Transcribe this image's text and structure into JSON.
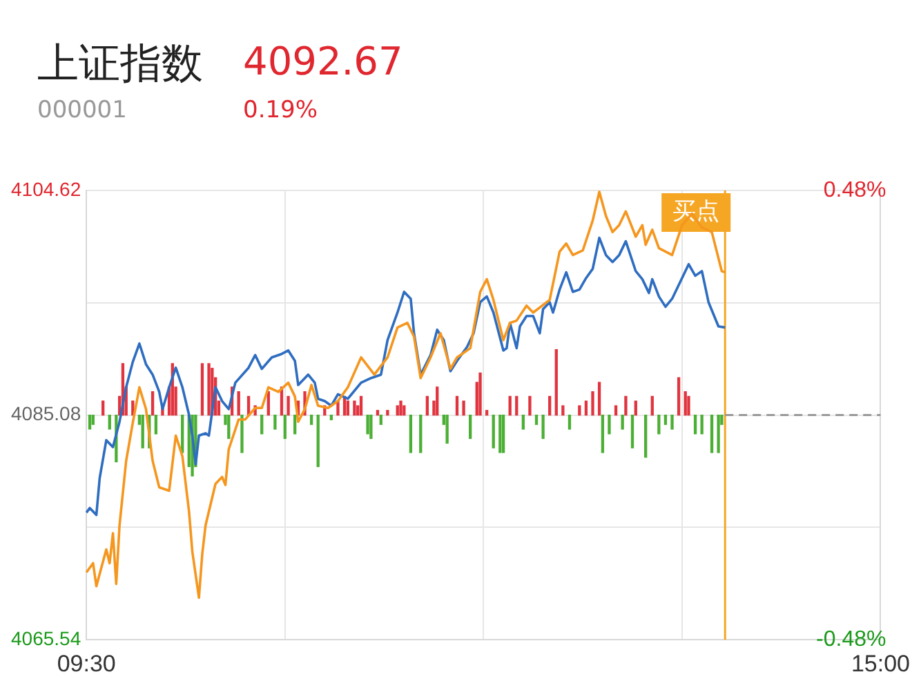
{
  "chart_data": {
    "type": "line",
    "title": "上证指数",
    "subtitle": "000001",
    "annotations": [
      "4092.67",
      "0.19%",
      {
        "text": "买点"
      }
    ],
    "categories": [
      "09:30",
      null,
      null,
      null,
      null,
      null,
      null,
      null,
      null,
      null,
      null,
      null,
      null,
      null,
      null,
      null,
      null,
      null,
      null,
      null,
      null,
      null,
      null,
      null,
      null,
      null,
      null,
      null,
      null,
      null,
      null,
      null,
      null,
      null,
      null,
      null,
      null,
      null,
      null,
      null,
      null,
      null,
      null,
      null,
      null,
      null,
      null,
      null,
      null,
      null,
      null,
      null,
      null,
      null,
      null,
      null,
      null,
      null,
      null,
      null,
      null,
      null,
      null,
      null,
      null,
      null,
      null,
      null,
      null,
      null,
      null,
      null,
      null,
      null,
      null,
      null,
      null,
      null,
      null,
      null,
      null,
      null,
      null,
      null,
      null,
      null,
      null,
      null,
      null,
      null,
      null,
      null,
      null,
      null,
      null,
      null,
      null,
      null,
      null,
      null,
      null,
      null,
      null,
      null,
      null,
      null,
      null,
      null,
      null,
      null,
      null,
      null,
      null,
      null,
      null,
      null,
      null,
      null,
      null,
      null,
      null,
      null,
      null,
      null,
      null,
      null,
      null,
      null,
      null,
      null,
      null,
      null,
      null,
      null,
      null,
      null,
      null,
      null,
      null,
      null,
      null,
      null,
      null,
      null,
      null,
      null,
      null,
      null,
      null,
      null,
      null,
      null,
      null,
      null,
      null,
      null,
      null,
      null,
      null,
      null,
      null,
      null,
      null,
      null,
      null,
      null,
      null,
      null,
      null,
      null,
      null,
      null,
      null,
      null,
      null,
      null,
      null,
      null,
      null,
      null,
      null,
      null,
      null,
      null,
      null,
      null,
      null,
      null,
      null,
      null,
      null,
      null,
      null,
      null,
      null,
      null,
      null,
      null,
      null,
      null,
      null,
      null,
      null,
      null,
      null,
      null,
      null,
      null,
      null,
      null,
      null,
      null,
      null,
      null,
      null,
      null,
      null,
      null,
      null,
      null,
      null,
      null,
      null,
      null,
      null,
      null,
      null,
      null,
      null,
      null,
      null,
      null,
      null,
      null,
      null,
      null,
      null,
      null,
      null,
      null,
      "15:00"
    ],
    "ylim": [
      4065.54,
      4104.62
    ],
    "yticks": [
      4065.54,
      {
        "value": 4075.31,
        "label": null
      },
      4085.08,
      {
        "value": 4094.85,
        "label": null
      },
      4104.62
    ],
    "y2lim": [
      -0.48,
      0.48
    ],
    "y2ticks": [
      {
        "value": -0.48,
        "label": "-0.48%"
      },
      {
        "value": 0.48,
        "label": "0.48%"
      }
    ],
    "grid": true,
    "legend": false,
    "marker": "none",
    "line_style": "solid",
    "ref_lines": [
      {
        "axis": "y",
        "value": 4085.08,
        "label": null,
        "color": "#999999",
        "line_style": "dashed"
      }
    ],
    "series": [
      {
        "type": "bar",
        "axis": "y2",
        "color": "#e0343f",
        "values": [
          null,
          null,
          null,
          null,
          null,
          0.03,
          null,
          null,
          null,
          null,
          0.04,
          0.11,
          0.06,
          null,
          0.03,
          null,
          null,
          null,
          null,
          null,
          0.05,
          null,
          null,
          0.02,
          null,
          0.06,
          0.11,
          0.06,
          null,
          null,
          null,
          null,
          null,
          null,
          null,
          0.11,
          null,
          0.11,
          0.1,
          0.08,
          0.03,
          null,
          null,
          null,
          0.06,
          null,
          0.05,
          null,
          null,
          0.04,
          null,
          0.02,
          null,
          null,
          null,
          0.05,
          null,
          null,
          null,
          0.06,
          null,
          0.04,
          null,
          null,
          0.03,
          null,
          0.05,
          null,
          null,
          null,
          null,
          null,
          0.02,
          null,
          null,
          null,
          0.03,
          null,
          0.04,
          0.03,
          null,
          0.03,
          0.02,
          0.04,
          null,
          null,
          null,
          null,
          0.01,
          null,
          null,
          0.01,
          null,
          null,
          0.02,
          0.03,
          0.02,
          null,
          null,
          null,
          null,
          null,
          null,
          0.04,
          null,
          0.03,
          0.06,
          null,
          null,
          null,
          null,
          null,
          0.04,
          null,
          0.03,
          null,
          null,
          null,
          0.07,
          0.09,
          null,
          0.01,
          null,
          null,
          null,
          null,
          null,
          null,
          0.04,
          null,
          0.04,
          null,
          null,
          null,
          0.04,
          null,
          null,
          null,
          null,
          null,
          0.04,
          null,
          0.14,
          null,
          0.02,
          null,
          null,
          null,
          null,
          0.02,
          null,
          0.03,
          null,
          0.05,
          null,
          0.07,
          null,
          null,
          null,
          null,
          0.02,
          null,
          null,
          0.04,
          null,
          null,
          0.03,
          null,
          null,
          null,
          null,
          0.04,
          null,
          null,
          null,
          null,
          null,
          null,
          null,
          0.08,
          null,
          0.05,
          0.04,
          null,
          null,
          null,
          null,
          null,
          null,
          null,
          null,
          null,
          null,
          null,
          null,
          null,
          null,
          null,
          null,
          null,
          null,
          null,
          null,
          null,
          null,
          null,
          null,
          null,
          null,
          null,
          null,
          null,
          null,
          null,
          null,
          null,
          null,
          null,
          null,
          null,
          null,
          null,
          null,
          null,
          null,
          null,
          null,
          null,
          null,
          null,
          null,
          null,
          null,
          null,
          null,
          null,
          null,
          null,
          null,
          null,
          null
        ]
      },
      {
        "type": "bar",
        "axis": "y2",
        "color": "#4caf35",
        "values": [
          null,
          -0.03,
          -0.02,
          null,
          null,
          null,
          null,
          -0.03,
          null,
          -0.1,
          null,
          null,
          null,
          null,
          null,
          null,
          -0.02,
          -0.07,
          null,
          -0.07,
          null,
          -0.04,
          null,
          null,
          null,
          null,
          null,
          null,
          null,
          -0.08,
          null,
          -0.11,
          -0.13,
          -0.11,
          null,
          null,
          null,
          null,
          null,
          null,
          null,
          null,
          -0.02,
          -0.05,
          null,
          null,
          null,
          -0.08,
          null,
          null,
          null,
          null,
          null,
          -0.04,
          null,
          null,
          null,
          -0.03,
          null,
          null,
          -0.05,
          null,
          null,
          -0.04,
          null,
          null,
          null,
          null,
          -0.02,
          null,
          -0.11,
          null,
          null,
          null,
          -0.01,
          null,
          null,
          null,
          null,
          null,
          null,
          null,
          null,
          null,
          null,
          -0.04,
          -0.05,
          null,
          null,
          -0.02,
          null,
          null,
          null,
          null,
          null,
          null,
          null,
          null,
          -0.08,
          null,
          null,
          -0.08,
          null,
          null,
          null,
          null,
          null,
          null,
          -0.02,
          -0.06,
          null,
          null,
          null,
          null,
          null,
          null,
          -0.05,
          null,
          null,
          null,
          null,
          null,
          null,
          -0.07,
          null,
          -0.08,
          -0.08,
          null,
          null,
          null,
          null,
          null,
          -0.03,
          null,
          null,
          null,
          -0.02,
          null,
          -0.05,
          null,
          null,
          null,
          null,
          null,
          null,
          null,
          -0.03,
          null,
          null,
          null,
          null,
          null,
          null,
          null,
          null,
          null,
          -0.08,
          null,
          -0.04,
          null,
          null,
          null,
          -0.03,
          null,
          null,
          -0.07,
          null,
          null,
          null,
          -0.09,
          null,
          null,
          null,
          -0.04,
          null,
          -0.02,
          null,
          -0.03,
          null,
          null,
          null,
          null,
          null,
          null,
          -0.04,
          null,
          -0.04,
          null,
          null,
          -0.08,
          null,
          -0.08,
          -0.02,
          null,
          null,
          null,
          null,
          null,
          null,
          null,
          null,
          null,
          null,
          null,
          null,
          null,
          null,
          null,
          null,
          null,
          null,
          null,
          null,
          null,
          null,
          null,
          null,
          null,
          null,
          null,
          null,
          null,
          null,
          null,
          null,
          null,
          null,
          null,
          null,
          null,
          null,
          null,
          null,
          null,
          null,
          null,
          null,
          null,
          null,
          null,
          null
        ]
      },
      {
        "color": "#f5961e",
        "values": [
          4071.4,
          null,
          4072.2,
          4070.2,
          null,
          null,
          4073.4,
          4072.2,
          4074.8,
          4070.4,
          4075.5,
          null,
          4081.1,
          null,
          4084.4,
          null,
          4087.5,
          null,
          4085.6,
          null,
          4081.1,
          null,
          4078.8,
          null,
          null,
          4078.5,
          null,
          4083.3,
          null,
          4081.5,
          null,
          4076.7,
          4073.2,
          null,
          4069.2,
          4073.0,
          4075.5,
          null,
          null,
          4079.1,
          null,
          4079.7,
          4079.0,
          4082.1,
          null,
          null,
          4084.7,
          null,
          4084.7,
          null,
          null,
          4085.7,
          null,
          4085.7,
          null,
          4087.5,
          null,
          null,
          4087.1,
          null,
          null,
          4087.9,
          null,
          4086.7,
          4084.5,
          null,
          4085.6,
          null,
          4087.7,
          null,
          4085.9,
          null,
          null,
          4085.7,
          null,
          null,
          4086.3,
          null,
          null,
          4087.5,
          null,
          null,
          null,
          4090.1,
          null,
          null,
          null,
          4088.6,
          null,
          null,
          null,
          4090.1,
          null,
          null,
          4092.7,
          null,
          null,
          4093.1,
          null,
          4091.9,
          null,
          4088.3,
          null,
          null,
          4090.1,
          null,
          null,
          4092.2,
          null,
          null,
          4089.1,
          null,
          4090.1,
          null,
          null,
          null,
          4090.9,
          null,
          null,
          4095.8,
          null,
          4096.9,
          null,
          4095.1,
          null,
          null,
          4091.6,
          null,
          4093.1,
          null,
          4093.3,
          null,
          null,
          4094.6,
          null,
          4094.0,
          null,
          null,
          null,
          null,
          4095.1,
          null,
          null,
          4099.3,
          null,
          4100.0,
          null,
          4099.0,
          null,
          null,
          4099.4,
          null,
          null,
          4102.0,
          null,
          4104.5,
          null,
          4102.4,
          null,
          4101.0,
          null,
          4101.6,
          null,
          4102.8,
          null,
          null,
          4100.6,
          null,
          4101.6,
          4099.9,
          null,
          4101.2,
          null,
          4099.6,
          null,
          null,
          null,
          4099.0,
          null,
          null,
          4101.6,
          null,
          null,
          4102.6,
          null,
          null,
          4101.4,
          null,
          null,
          4101.0,
          null,
          null,
          4097.6,
          4097.5,
          null,
          null,
          null,
          null,
          null,
          null,
          null,
          null,
          null,
          null,
          null,
          null,
          null,
          null,
          null,
          null,
          null,
          null,
          null,
          null,
          null,
          null,
          null,
          null,
          null,
          null,
          null,
          null,
          null,
          null,
          null,
          null,
          null,
          null,
          null,
          null,
          null,
          null,
          null,
          null,
          null,
          null,
          null,
          null,
          null,
          null,
          null
        ]
      },
      {
        "color": "#2e6dc0",
        "values": [
          4076.6,
          4077.0,
          null,
          4076.4,
          4079.6,
          null,
          4082.9,
          null,
          4082.3,
          null,
          4084.5,
          null,
          4087.5,
          null,
          4089.7,
          null,
          4091.3,
          null,
          4089.5,
          null,
          4088.6,
          null,
          4087.1,
          4085.6,
          null,
          4087.5,
          null,
          4089.2,
          null,
          4087.5,
          null,
          4085.1,
          4083.3,
          4080.8,
          4083.3,
          null,
          4083.5,
          4083.3,
          null,
          4087.5,
          null,
          4086.3,
          null,
          4085.6,
          null,
          4087.9,
          null,
          null,
          null,
          4089.2,
          null,
          4090.3,
          null,
          4089.1,
          null,
          null,
          4090.1,
          null,
          null,
          4090.4,
          null,
          4090.7,
          null,
          4089.8,
          4087.7,
          null,
          null,
          4088.6,
          null,
          4087.9,
          4086.5,
          null,
          4086.3,
          null,
          4085.9,
          null,
          4086.9,
          null,
          null,
          4086.5,
          null,
          null,
          null,
          4087.9,
          null,
          null,
          4088.3,
          null,
          null,
          4088.6,
          null,
          4091.6,
          null,
          null,
          4094.0,
          null,
          4095.8,
          null,
          4095.2,
          4092.2,
          null,
          4088.6,
          null,
          null,
          4090.3,
          null,
          4092.5,
          null,
          4091.6,
          null,
          4088.9,
          null,
          4089.8,
          null,
          null,
          4091.0,
          null,
          4092.2,
          null,
          4094.9,
          null,
          4095.4,
          null,
          4094.0,
          null,
          null,
          4090.7,
          4090.9,
          4093.1,
          null,
          4090.9,
          4092.8,
          null,
          4093.7,
          null,
          4093.7,
          null,
          4092.2,
          4094.3,
          null,
          4094.9,
          4094.0,
          null,
          4096.0,
          null,
          4097.5,
          null,
          4095.8,
          null,
          4096.0,
          null,
          4097.0,
          null,
          4097.8,
          null,
          4100.5,
          null,
          4099.0,
          null,
          4098.4,
          null,
          4099.0,
          null,
          4100.2,
          null,
          null,
          4097.6,
          null,
          4096.9,
          null,
          4095.7,
          4096.9,
          null,
          4095.4,
          null,
          4094.5,
          null,
          4095.2,
          null,
          4096.4,
          null,
          null,
          4098.2,
          null,
          4097.2,
          null,
          4097.6,
          null,
          4094.9,
          null,
          null,
          4092.8,
          null,
          4092.7,
          null,
          null,
          null,
          null,
          null,
          null,
          null,
          null,
          null,
          null,
          null,
          null,
          null,
          null,
          null,
          null,
          null,
          null,
          null,
          null,
          null,
          null,
          null,
          null,
          null,
          null,
          null,
          null,
          null,
          null,
          null,
          null,
          null,
          null,
          null,
          null,
          null,
          null,
          null,
          null,
          null,
          null,
          null,
          null,
          null,
          null,
          null
        ]
      }
    ]
  }
}
